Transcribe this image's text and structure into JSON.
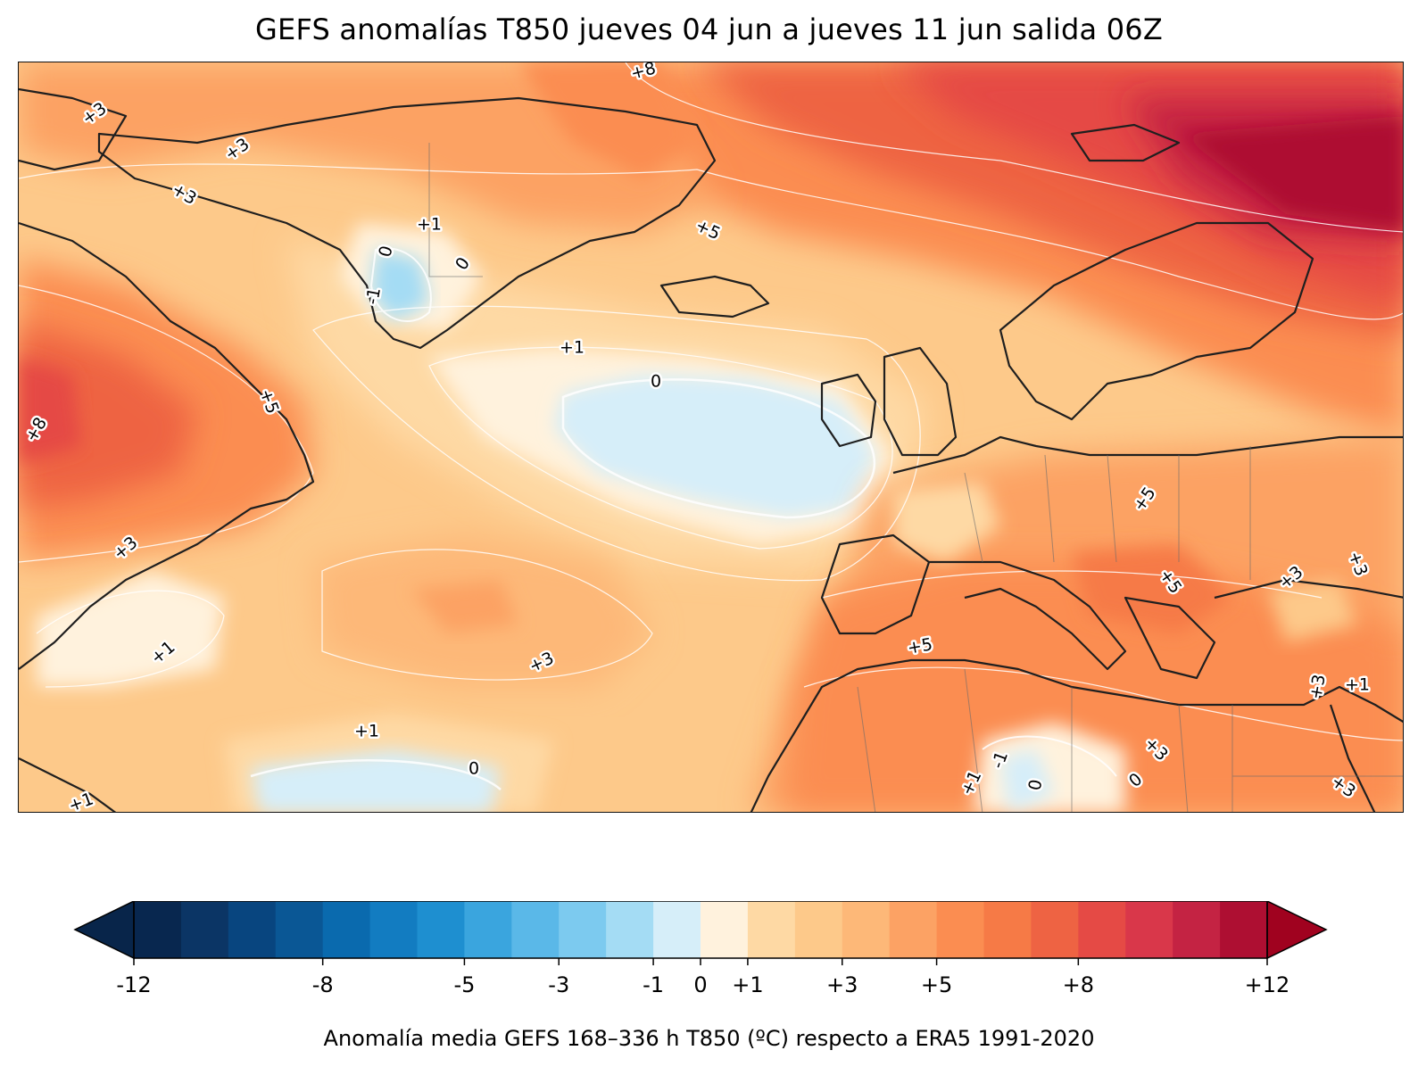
{
  "title": "GEFS anomalías T850 jueves 04 jun a jueves 11 jun salida 06Z",
  "colorbar": {
    "label": "Anomalía media GEFS 168–336 h T850 (ºC) respecto a ERA5 1991-2020",
    "min": -12,
    "max": 12,
    "extend": "both",
    "under_color": "#08254a",
    "over_color": "#a0021f",
    "bins": [
      {
        "from": -12,
        "to": -11,
        "color": "#08274f"
      },
      {
        "from": -11,
        "to": -10,
        "color": "#0b3565"
      },
      {
        "from": -10,
        "to": -9,
        "color": "#08457f"
      },
      {
        "from": -9,
        "to": -8,
        "color": "#0a5795"
      },
      {
        "from": -8,
        "to": -7,
        "color": "#0a6aae"
      },
      {
        "from": -7,
        "to": -6,
        "color": "#127cc1"
      },
      {
        "from": -6,
        "to": -5,
        "color": "#1e8fd0"
      },
      {
        "from": -5,
        "to": -4,
        "color": "#3aa5de"
      },
      {
        "from": -4,
        "to": -3,
        "color": "#5ab8e8"
      },
      {
        "from": -3,
        "to": -2,
        "color": "#7ccaef"
      },
      {
        "from": -2,
        "to": -1,
        "color": "#a4dcf4"
      },
      {
        "from": -1,
        "to": 0,
        "color": "#d6eef9"
      },
      {
        "from": 0,
        "to": 1,
        "color": "#fff2dd"
      },
      {
        "from": 1,
        "to": 2,
        "color": "#fed9a4"
      },
      {
        "from": 2,
        "to": 3,
        "color": "#fdc98a"
      },
      {
        "from": 3,
        "to": 4,
        "color": "#fdb878"
      },
      {
        "from": 4,
        "to": 5,
        "color": "#fca264"
      },
      {
        "from": 5,
        "to": 6,
        "color": "#fb8d51"
      },
      {
        "from": 6,
        "to": 7,
        "color": "#f67a46"
      },
      {
        "from": 7,
        "to": 8,
        "color": "#ee6343"
      },
      {
        "from": 8,
        "to": 9,
        "color": "#e54a45"
      },
      {
        "from": 9,
        "to": 10,
        "color": "#d9374a"
      },
      {
        "from": 10,
        "to": 11,
        "color": "#c42343"
      },
      {
        "from": 11,
        "to": 12,
        "color": "#ae0f32"
      }
    ],
    "ticks": [
      {
        "value": -12,
        "label": "-12"
      },
      {
        "value": -8,
        "label": "-8"
      },
      {
        "value": -5,
        "label": "-5"
      },
      {
        "value": -3,
        "label": "-3"
      },
      {
        "value": -1,
        "label": "-1"
      },
      {
        "value": 0,
        "label": "0"
      },
      {
        "value": 1,
        "label": "+1"
      },
      {
        "value": 3,
        "label": "+3"
      },
      {
        "value": 5,
        "label": "+5"
      },
      {
        "value": 8,
        "label": "+8"
      },
      {
        "value": 12,
        "label": "+12"
      }
    ]
  },
  "contour_labels": [
    "+8",
    "+3",
    "+3",
    "+3",
    "+1",
    "0",
    "0",
    "-1",
    "+5",
    "+1",
    "0",
    "+8",
    "+5",
    "+3",
    "+1",
    "+3",
    "+1",
    "0",
    "+5",
    "+5",
    "+3",
    "+3",
    "+5",
    "+3",
    "+1",
    "+3",
    "+1",
    "-1",
    "0",
    "0",
    "+3",
    "+1"
  ]
}
